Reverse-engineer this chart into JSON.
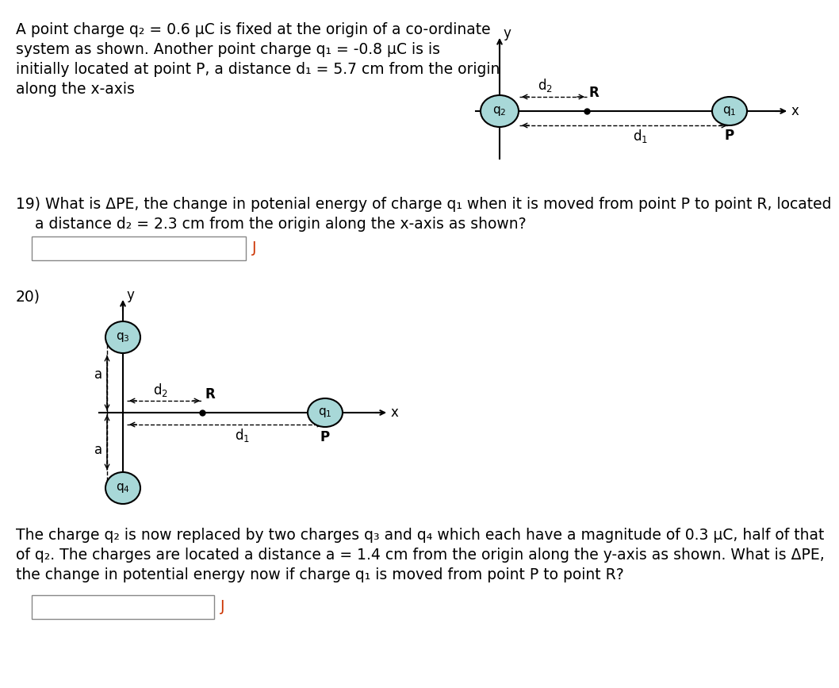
{
  "bg_color": "#ffffff",
  "text_color": "#000000",
  "circle_color": "#a8d8d8",
  "circle_edge": "#000000",
  "problem_text_1": "A point charge q₂ = 0.6 μC is fixed at the origin of a co-ordinate",
  "problem_text_2": "system as shown. Another point charge q₁ = -0.8 μC is is",
  "problem_text_3": "initially located at point P, a distance d₁ = 5.7 cm from the origin",
  "problem_text_4": "along the x-axis",
  "q19_text_1": "19) What is ΔPE, the change in potenial energy of charge q₁ when it is moved from point P to point R, located",
  "q19_text_2": "    a distance d₂ = 2.3 cm from the origin along the x-axis as shown?",
  "q20_label": "20)",
  "q20_text_1": "The charge q₂ is now replaced by two charges q₃ and q₄ which each have a magnitude of 0.3 μC, half of that",
  "q20_text_2": "of q₂. The charges are located a distance a = 1.4 cm from the origin along the y-axis as shown. What is ΔPE,",
  "q20_text_3": "the change in potential energy now if charge q₁ is moved from point P to point R?",
  "font_size_main": 13.5,
  "font_size_label": 12
}
